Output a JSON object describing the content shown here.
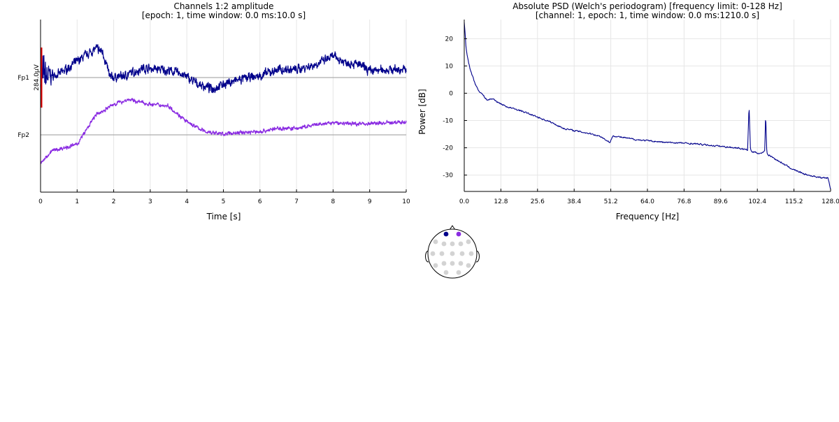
{
  "colors": {
    "ch1": "#00008B",
    "ch2": "#8A2BE2",
    "marker": "#E00000",
    "grid": "#e6e6e6",
    "hline": "#9a9a9a",
    "electrode_inactive": "#d3d3d3"
  },
  "chart_data": [
    {
      "type": "line",
      "title": "Channels 1:2 amplitude",
      "subtitle": "[epoch: 1, time window: 0.0 ms:10.0 s]",
      "xlabel": "Time [s]",
      "ylabel": "",
      "xlim": [
        0,
        10
      ],
      "xticks": [
        "0",
        "1",
        "2",
        "3",
        "4",
        "5",
        "6",
        "7",
        "8",
        "9",
        "10"
      ],
      "channels": [
        "Fp1",
        "Fp2"
      ],
      "scale_label": "284.0μV",
      "grid": true,
      "series": [
        {
          "name": "Fp1",
          "x": [
            0,
            0.5,
            1,
            1.5,
            1.7,
            1.9,
            2.3,
            2.8,
            3.3,
            3.8,
            4.3,
            4.7,
            5,
            5.5,
            6,
            6.5,
            7,
            7.5,
            8,
            8.3,
            8.7,
            9,
            9.5,
            10
          ],
          "y": [
            0,
            0.2,
            1.0,
            1.8,
            1.6,
            0,
            0.1,
            0.6,
            0.5,
            0.3,
            -0.4,
            -0.7,
            -0.4,
            -0.1,
            0.1,
            0.5,
            0.5,
            0.8,
            1.3,
            1.0,
            0.8,
            0.4,
            0.5,
            0.5
          ]
        },
        {
          "name": "Fp2",
          "x": [
            0,
            0.3,
            1,
            1.5,
            2,
            2.4,
            3,
            3.5,
            4,
            4.5,
            5,
            5.5,
            6,
            6.5,
            7,
            7.5,
            8,
            8.5,
            9,
            9.5,
            10
          ],
          "y": [
            -1.8,
            -1.0,
            -0.6,
            1.2,
            1.9,
            2.2,
            1.9,
            1.8,
            0.8,
            0.2,
            0.05,
            0.15,
            0.2,
            0.4,
            0.4,
            0.6,
            0.75,
            0.7,
            0.7,
            0.75,
            0.8
          ]
        }
      ]
    },
    {
      "type": "line",
      "title": "Absolute PSD (Welch's periodogram) [frequency limit: 0-128 Hz]",
      "subtitle": "[channel: 1, epoch: 1, time window: 0.0 ms:1210.0 s]",
      "xlabel": "Frequency [Hz]",
      "ylabel": "Power [dB]",
      "xlim": [
        0,
        128
      ],
      "ylim": [
        -36,
        27
      ],
      "xticks": [
        "0.0",
        "12.8",
        "25.6",
        "38.4",
        "51.2",
        "64.0",
        "76.8",
        "89.6",
        "102.4",
        "115.2",
        "128.0"
      ],
      "yticks": [
        20,
        10,
        0,
        -10,
        -20,
        -30
      ],
      "grid": true,
      "series": [
        {
          "name": "",
          "x": [
            0,
            0.3,
            0.6,
            1,
            2,
            3,
            4,
            5,
            6,
            8,
            10,
            12,
            15,
            20,
            25,
            30,
            35,
            40,
            45,
            48,
            50,
            51,
            52,
            54,
            60,
            65,
            70,
            75,
            80,
            85,
            90,
            95,
            98,
            99,
            99.5,
            100,
            100.5,
            101,
            103,
            104,
            105,
            105.3,
            105.7,
            106,
            107,
            110,
            115,
            120,
            125,
            127,
            128
          ],
          "y": [
            26,
            22,
            17,
            14,
            9,
            6,
            3,
            1,
            0,
            -2.5,
            -2,
            -3.5,
            -5,
            -6.5,
            -8.5,
            -10.5,
            -13,
            -14,
            -15,
            -16,
            -17.5,
            -18,
            -15.5,
            -16,
            -17,
            -17.5,
            -18,
            -18.2,
            -18.5,
            -19,
            -19.5,
            -20,
            -20.5,
            -21,
            -4.5,
            -20.5,
            -21.5,
            -21.5,
            -22,
            -22,
            -21,
            -7.5,
            -21.5,
            -22.5,
            -23,
            -25,
            -28,
            -30,
            -31,
            -31,
            -35
          ]
        }
      ]
    }
  ],
  "topo": {
    "active_electrodes": [
      "Fp1",
      "Fp2"
    ],
    "electrode_count": 19
  }
}
